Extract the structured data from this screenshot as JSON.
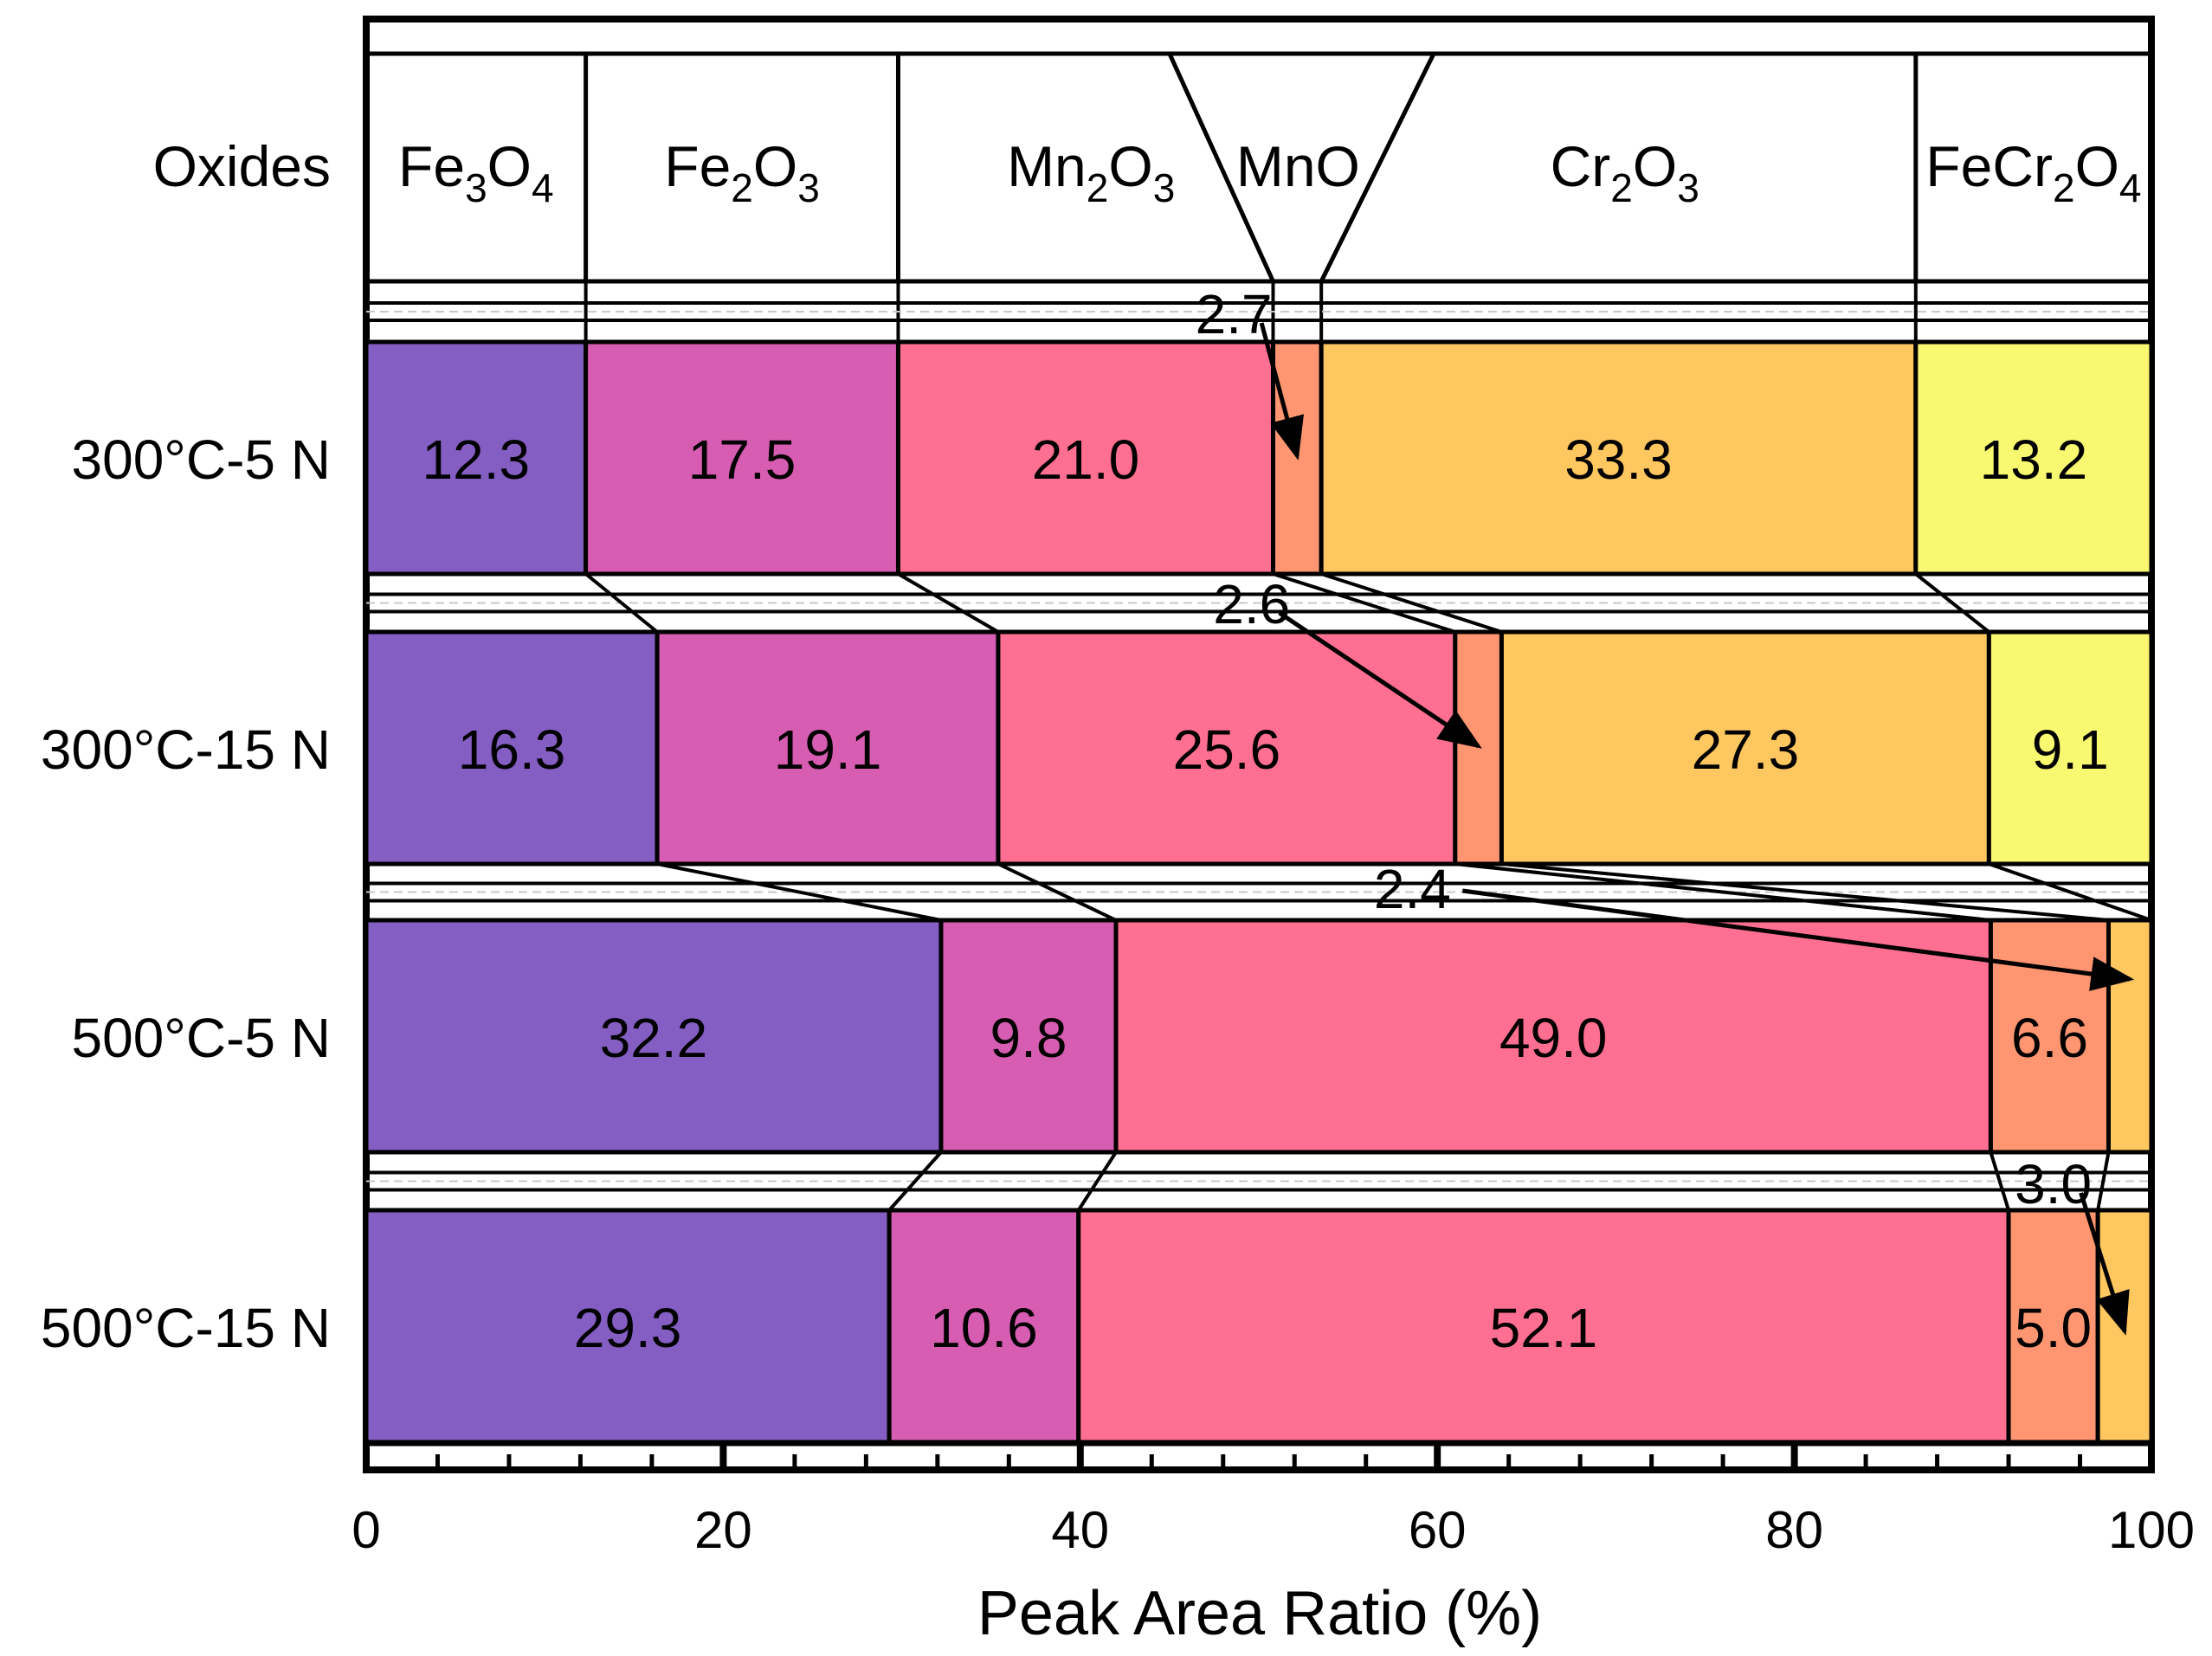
{
  "chart_data": {
    "type": "stacked-bar-horizontal",
    "title": "",
    "xlabel": "Peak Area Ratio (%)",
    "ylabel": "",
    "xlim": [
      0,
      100
    ],
    "x_ticks": [
      "0",
      "20",
      "40",
      "60",
      "80",
      "100"
    ],
    "header_label": "Oxides",
    "series": [
      {
        "name": "Fe3O4",
        "label_main": [
          "Fe",
          "3",
          "O",
          "4"
        ],
        "color": "#845EC2"
      },
      {
        "name": "Fe2O3",
        "label_main": [
          "Fe",
          "2",
          "O",
          "3"
        ],
        "color": "#D65DB1"
      },
      {
        "name": "Mn2O3",
        "label_main": [
          "Mn",
          "2",
          "O",
          "3"
        ],
        "color": "#FF6F91"
      },
      {
        "name": "MnO",
        "label_main": [
          "MnO"
        ],
        "color": "#FF9671"
      },
      {
        "name": "Cr2O3",
        "label_main": [
          "Cr",
          "2",
          "O",
          "3"
        ],
        "color": "#FFC75F"
      },
      {
        "name": "FeCr2O4",
        "label_main": [
          "FeCr",
          "2",
          "O",
          "4"
        ],
        "color": "#F9F871"
      }
    ],
    "categories": [
      "300°C-5 N",
      "300°C-15 N",
      "500°C-5 N",
      "500°C-15 N"
    ],
    "rows": [
      {
        "label": "300°C-5 N",
        "values": [
          12.3,
          17.5,
          21.0,
          2.7,
          33.3,
          13.2
        ],
        "labels": [
          "12.3",
          "17.5",
          "21.0",
          "",
          "33.3",
          "13.2"
        ],
        "callout": {
          "text": "2.7",
          "segment": 3
        }
      },
      {
        "label": "300°C-15 N",
        "values": [
          16.3,
          19.1,
          25.6,
          2.6,
          27.3,
          9.1
        ],
        "labels": [
          "16.3",
          "19.1",
          "25.6",
          "",
          "27.3",
          "9.1"
        ],
        "callout": {
          "text": "2.6",
          "segment": 3
        }
      },
      {
        "label": "500°C-5 N",
        "values": [
          32.2,
          9.8,
          49.0,
          6.6,
          2.4,
          0
        ],
        "labels": [
          "32.2",
          "9.8",
          "49.0",
          "6.6",
          "",
          ""
        ],
        "callout": {
          "text": "2.4",
          "segment": 4
        }
      },
      {
        "label": "500°C-15 N",
        "values": [
          29.3,
          10.6,
          52.1,
          5.0,
          3.0,
          0
        ],
        "labels": [
          "29.3",
          "10.6",
          "52.1",
          "5.0",
          "",
          ""
        ],
        "callout": {
          "text": "3.0",
          "segment": 4
        }
      }
    ],
    "legend": "header-row",
    "grid": false
  }
}
